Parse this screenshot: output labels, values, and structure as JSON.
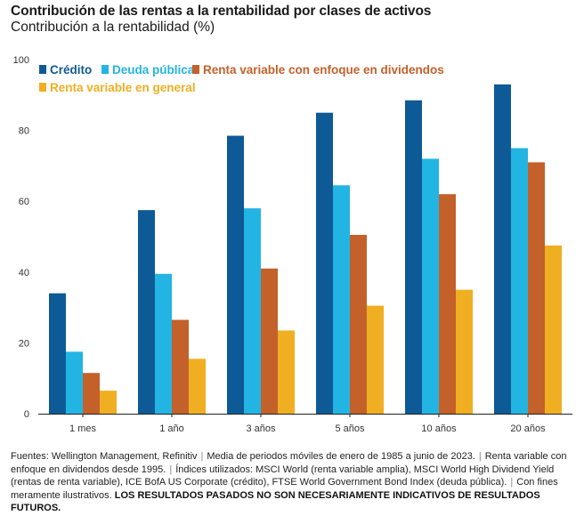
{
  "title": "Contribución de las rentas a la rentabilidad por clases de activos",
  "subtitle": "Contribución a la rentabilidad (%)",
  "chart_data": {
    "type": "bar",
    "title": "Contribución de las rentas a la rentabilidad por clases de activos",
    "ylabel": "Contribución a la rentabilidad (%)",
    "xlabel": "",
    "ylim": [
      0,
      100
    ],
    "yticks": [
      0,
      20,
      40,
      60,
      80,
      100
    ],
    "grid": false,
    "legend": "top-left",
    "categories": [
      "1 mes",
      "1 año",
      "3 años",
      "5 años",
      "10 años",
      "20 años"
    ],
    "series": [
      {
        "name": "Crédito",
        "color": "#0d5a96",
        "values": [
          34,
          57.5,
          78.5,
          85,
          88.5,
          93
        ]
      },
      {
        "name": "Deuda pública",
        "color": "#22b5e3",
        "values": [
          17.5,
          39.5,
          58,
          64.5,
          72,
          75
        ]
      },
      {
        "name": "Renta variable con enfoque en dividendos",
        "color": "#c4612a",
        "values": [
          11.5,
          26.5,
          41,
          50.5,
          62,
          71
        ]
      },
      {
        "name": "Renta variable en general",
        "color": "#f0ae22",
        "values": [
          6.5,
          15.5,
          23.5,
          30.5,
          35,
          47.5
        ]
      }
    ]
  },
  "footer": {
    "sources": "Fuentes: Wellington Management, Refinitiv",
    "period": "Media de periodos móviles de enero de 1985 a junio de 2023.",
    "dividend_note": "Renta variable con enfoque en dividendos desde 1995.",
    "indices": "Índices utilizados: MSCI World (renta variable amplia), MSCI World High Dividend Yield (rentas de renta variable), ICE BofA US Corporate (crédito), FTSE World Government Bond Index (deuda pública).",
    "illustrative": "Con fines meramente ilustrativos.",
    "disclaimer": "LOS RESULTADOS PASADOS NO SON NECESARIAMENTE INDICATIVOS DE RESULTADOS FUTUROS."
  }
}
